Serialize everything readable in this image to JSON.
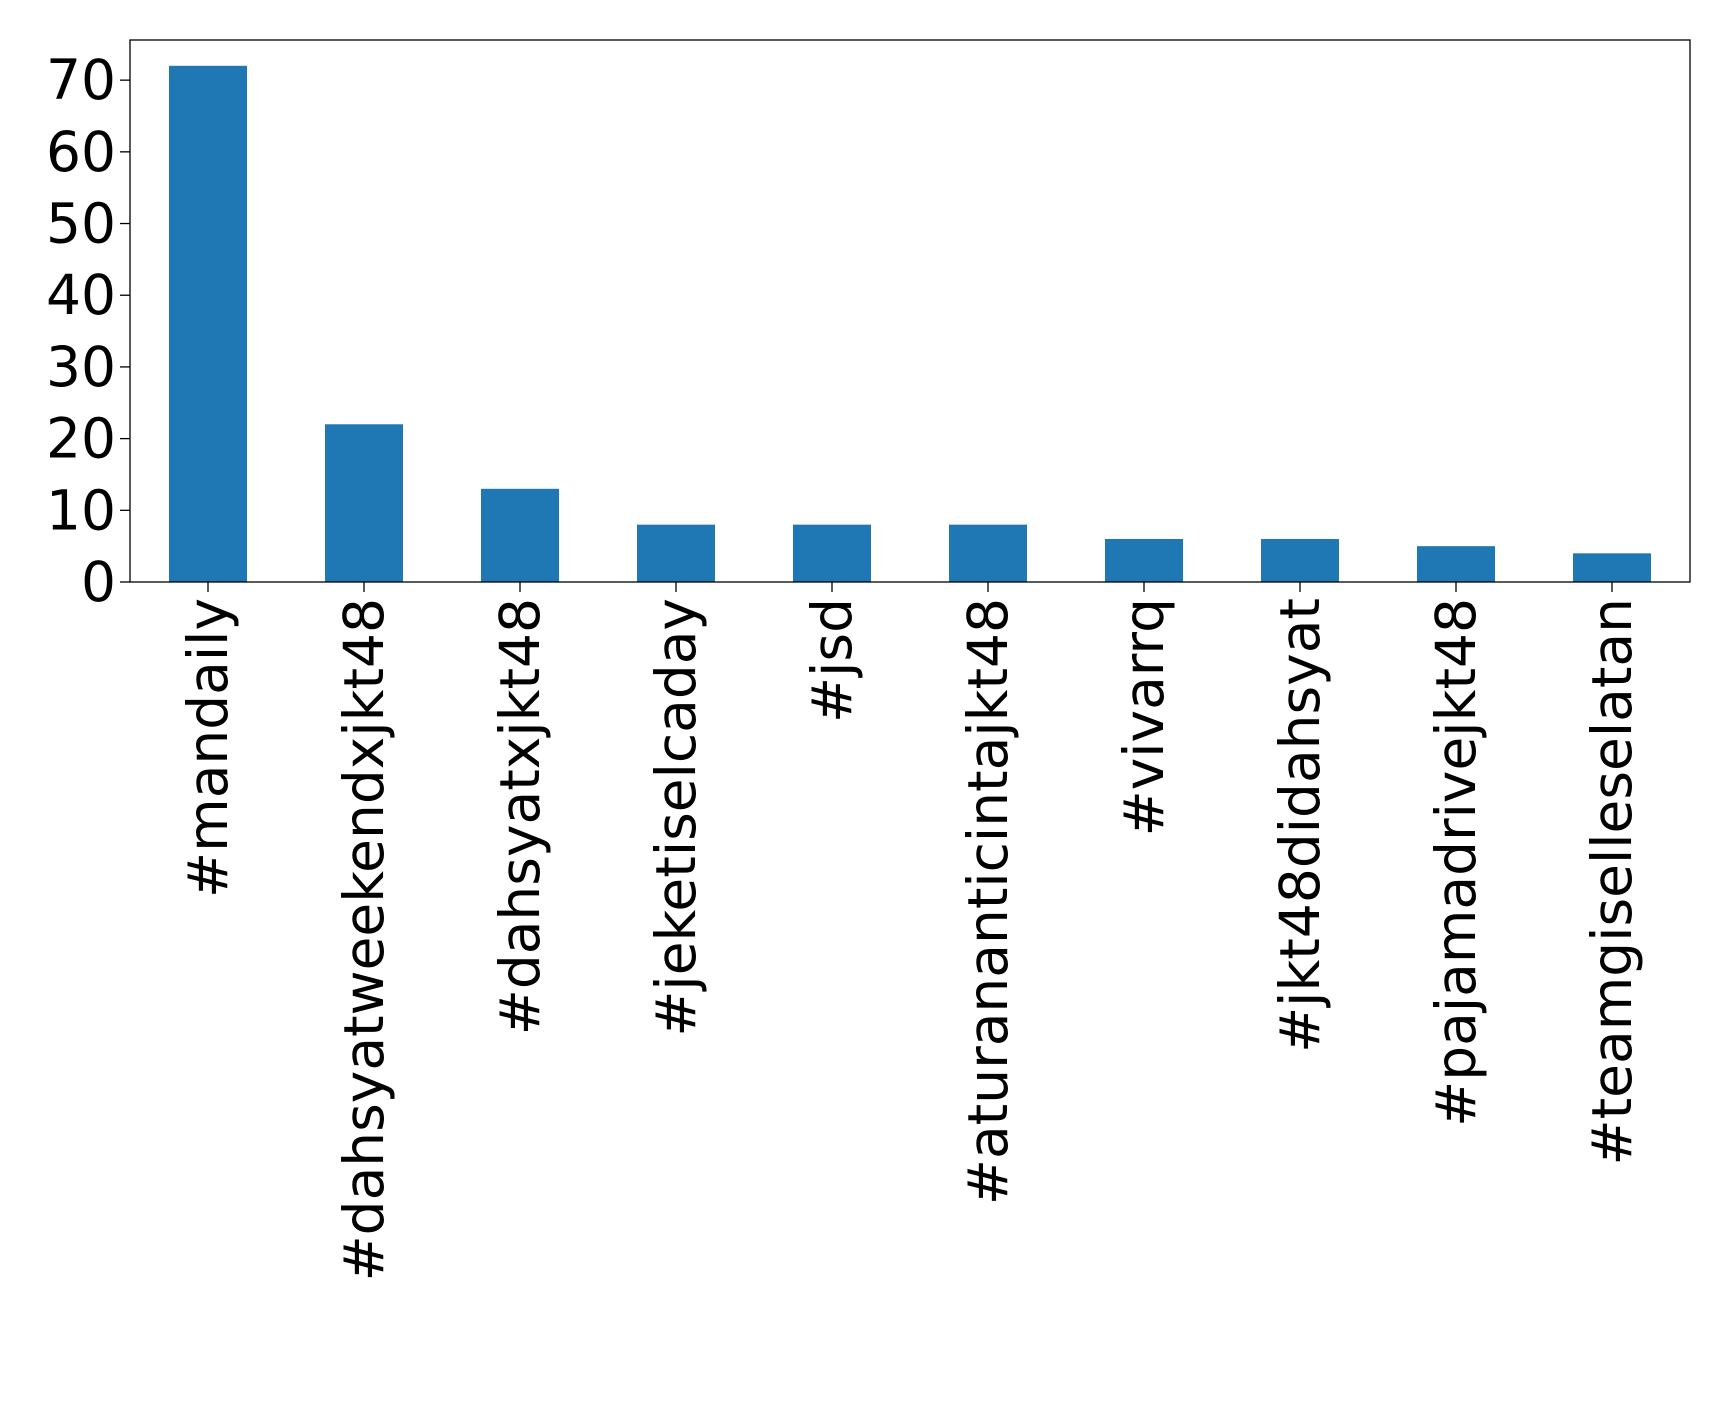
{
  "chart_data": {
    "type": "bar",
    "title": "",
    "xlabel": "",
    "ylabel": "",
    "categories": [
      "#mandaily",
      "#dahsyatweekendxjkt48",
      "#dahsyatxjkt48",
      "#jeketiselcaday",
      "#jsd",
      "#aturananticintajkt48",
      "#vivarrq",
      "#jkt48didahsyat",
      "#pajamadrivejkt48",
      "#teamgiselleselatan"
    ],
    "values": [
      72,
      22,
      13,
      8,
      8,
      8,
      6,
      6,
      5,
      4
    ],
    "ylim": [
      0,
      75.6
    ],
    "yticks": [
      0,
      10,
      20,
      30,
      40,
      50,
      60,
      70
    ],
    "grid": false,
    "legend": false,
    "colors": {
      "bar": "#1f77b4",
      "axis": "#000000",
      "background": "#ffffff"
    }
  }
}
